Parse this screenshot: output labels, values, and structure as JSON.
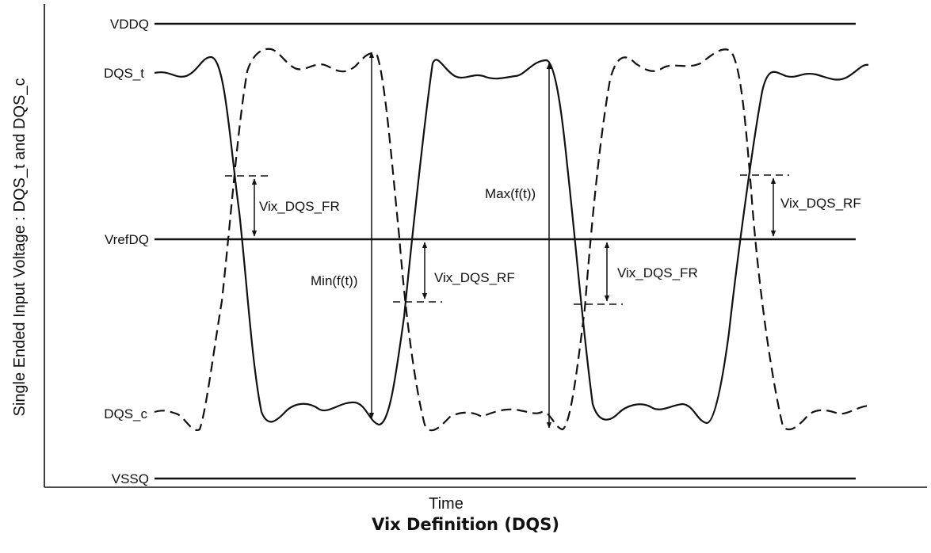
{
  "diagram": {
    "rails": {
      "top": "VDDQ",
      "bottom": "VSSQ"
    },
    "reference": "VrefDQ",
    "signals": {
      "true": "DQS_t",
      "complement": "DQS_c"
    },
    "y_axis_title": "Single Ended Input Voltage : DQS_t and DQS_c",
    "x_axis_title": "Time",
    "annotations": {
      "vix_fr_1": "Vix_DQS_FR",
      "vix_rf_1": "Vix_DQS_RF",
      "vix_fr_2": "Vix_DQS_FR",
      "vix_rf_2": "Vix_DQS_RF",
      "min": "Min(f(t))",
      "max": "Max(f(t))"
    },
    "colors": {
      "line": "#111111",
      "background": "#ffffff"
    }
  },
  "caption": "Vix Definition (DQS)"
}
